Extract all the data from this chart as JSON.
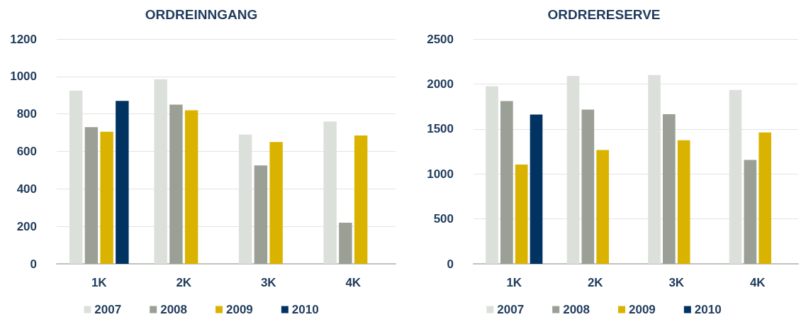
{
  "chart_data": [
    {
      "type": "bar",
      "title": "ORDREINNGANG",
      "categories": [
        "1K",
        "2K",
        "3K",
        "4K"
      ],
      "series": [
        {
          "name": "2007",
          "color": "#dce0db",
          "values": [
            925,
            985,
            690,
            760
          ]
        },
        {
          "name": "2008",
          "color": "#9aa095",
          "values": [
            730,
            850,
            525,
            220
          ]
        },
        {
          "name": "2009",
          "color": "#dab300",
          "values": [
            705,
            820,
            650,
            685
          ]
        },
        {
          "name": "2010",
          "color": "#003362",
          "values": [
            870,
            null,
            null,
            null
          ]
        }
      ],
      "ylim": [
        0,
        1200
      ],
      "yticks": [
        0,
        200,
        400,
        600,
        800,
        1000,
        1200
      ],
      "grid": "y",
      "legend": "bottom"
    },
    {
      "type": "bar",
      "title": "ORDRERESERVE",
      "categories": [
        "1K",
        "2K",
        "3K",
        "4K"
      ],
      "series": [
        {
          "name": "2007",
          "color": "#dce0db",
          "values": [
            1975,
            2090,
            2100,
            1935
          ]
        },
        {
          "name": "2008",
          "color": "#9aa095",
          "values": [
            1810,
            1715,
            1665,
            1155
          ]
        },
        {
          "name": "2009",
          "color": "#dab300",
          "values": [
            1105,
            1265,
            1375,
            1460
          ]
        },
        {
          "name": "2010",
          "color": "#003362",
          "values": [
            1660,
            null,
            null,
            null
          ]
        }
      ],
      "ylim": [
        0,
        2500
      ],
      "yticks": [
        0,
        500,
        1000,
        1500,
        2000,
        2500
      ],
      "grid": "y",
      "legend": "bottom"
    }
  ]
}
